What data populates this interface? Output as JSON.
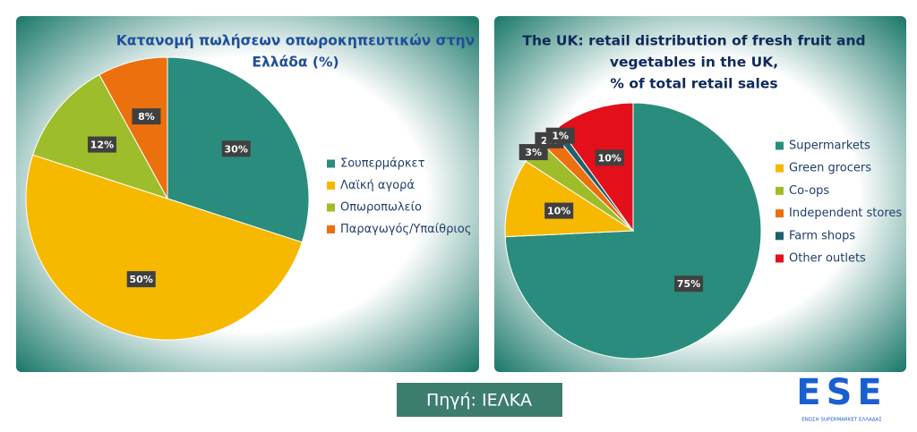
{
  "chart_data": [
    {
      "type": "pie",
      "title": [
        "Κατανομή πωλήσεων οπωροκηπευτικών στην",
        "Ελλάδα (%)"
      ],
      "categories": [
        "Σουπερμάρκετ",
        "Λαϊκή αγορά",
        "Οπωροπωλείο",
        "Παραγωγός/Υπαίθριος"
      ],
      "values": [
        30,
        50,
        12,
        8
      ],
      "value_labels": [
        "30%",
        "50%",
        "12%",
        "8%"
      ],
      "colors": [
        "#2a8c7c",
        "#f7b800",
        "#9ebd2a",
        "#ec700d"
      ],
      "legend": "right"
    },
    {
      "type": "pie",
      "title": [
        "The UK: retail distribution of fresh fruit and",
        "vegetables in the UK,",
        "% of total retail sales"
      ],
      "categories": [
        "Supermarkets",
        "Green grocers",
        "Co-ops",
        "Independent stores",
        "Farm shops",
        "Other outlets"
      ],
      "values": [
        75,
        10,
        3,
        2,
        1,
        10
      ],
      "value_labels": [
        "75%",
        "10%",
        "3%",
        "2%",
        "1%",
        "10%"
      ],
      "colors": [
        "#2a8c7c",
        "#f7b800",
        "#9ebd2a",
        "#ec700d",
        "#1f5f6e",
        "#e3101c"
      ],
      "legend": "right"
    }
  ],
  "source": "Πηγή: ΙΕΛΚΑ",
  "logo": {
    "mark": "ESE",
    "caption": "ΕΝΩΣΗ SUPERMARKET ΕΛΛΑΔΑΣ"
  }
}
